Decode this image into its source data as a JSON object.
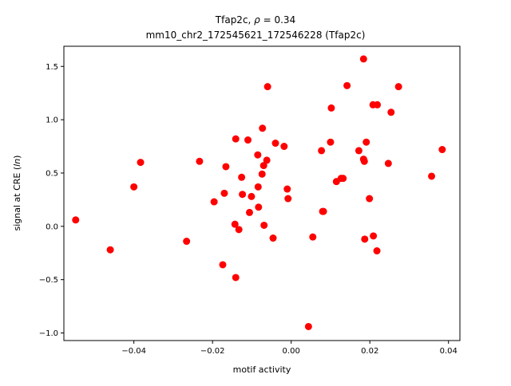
{
  "chart_data": {
    "type": "scatter",
    "title_line1_prefix": "Tfap2c, ",
    "title_rho_symbol": "ρ",
    "title_rho_value": " = 0.34",
    "title_line2": "mm10_chr2_172545621_172546228 (Tfap2c)",
    "xlabel": "motif activity",
    "ylabel_prefix": "signal at CRE (",
    "ylabel_italic": "ln",
    "ylabel_suffix": ")",
    "xlim": [
      -0.0578,
      0.0429
    ],
    "ylim": [
      -1.071,
      1.689
    ],
    "xticks": [
      -0.04,
      -0.02,
      0.0,
      0.02,
      0.04
    ],
    "xtick_labels": [
      "−0.04",
      "−0.02",
      "0.00",
      "0.02",
      "0.04"
    ],
    "yticks": [
      -1.0,
      -0.5,
      0.0,
      0.5,
      1.0,
      1.5
    ],
    "ytick_labels": [
      "−1.0",
      "−0.5",
      "0.0",
      "0.5",
      "1.0",
      "1.5"
    ],
    "grid": false,
    "marker_color": "#ff0000",
    "points": [
      {
        "x": -0.0548,
        "y": 0.06
      },
      {
        "x": -0.046,
        "y": -0.22
      },
      {
        "x": -0.04,
        "y": 0.37
      },
      {
        "x": -0.0383,
        "y": 0.6
      },
      {
        "x": -0.0266,
        "y": -0.14
      },
      {
        "x": -0.0233,
        "y": 0.61
      },
      {
        "x": -0.0196,
        "y": 0.23
      },
      {
        "x": -0.0174,
        "y": -0.36
      },
      {
        "x": -0.017,
        "y": 0.31
      },
      {
        "x": -0.0166,
        "y": 0.56
      },
      {
        "x": -0.0143,
        "y": 0.02
      },
      {
        "x": -0.0141,
        "y": 0.82
      },
      {
        "x": -0.0141,
        "y": -0.48
      },
      {
        "x": -0.0133,
        "y": -0.03
      },
      {
        "x": -0.0126,
        "y": 0.46
      },
      {
        "x": -0.0124,
        "y": 0.3
      },
      {
        "x": -0.011,
        "y": 0.81
      },
      {
        "x": -0.0106,
        "y": 0.13
      },
      {
        "x": -0.0101,
        "y": 0.28
      },
      {
        "x": -0.0085,
        "y": 0.67
      },
      {
        "x": -0.0084,
        "y": 0.37
      },
      {
        "x": -0.0083,
        "y": 0.18
      },
      {
        "x": -0.0074,
        "y": 0.49
      },
      {
        "x": -0.0073,
        "y": 0.92
      },
      {
        "x": -0.007,
        "y": 0.57
      },
      {
        "x": -0.0069,
        "y": 0.01
      },
      {
        "x": -0.0062,
        "y": 0.62
      },
      {
        "x": -0.006,
        "y": 1.31
      },
      {
        "x": -0.0046,
        "y": -0.11
      },
      {
        "x": -0.004,
        "y": 0.78
      },
      {
        "x": -0.0018,
        "y": 0.75
      },
      {
        "x": -0.001,
        "y": 0.35
      },
      {
        "x": -0.0008,
        "y": 0.26
      },
      {
        "x": 0.0044,
        "y": -0.94
      },
      {
        "x": 0.0055,
        "y": -0.1
      },
      {
        "x": 0.0077,
        "y": 0.71
      },
      {
        "x": 0.008,
        "y": 0.14
      },
      {
        "x": 0.0082,
        "y": 0.14
      },
      {
        "x": 0.01,
        "y": 0.79
      },
      {
        "x": 0.0102,
        "y": 1.11
      },
      {
        "x": 0.0115,
        "y": 0.42
      },
      {
        "x": 0.0127,
        "y": 0.45
      },
      {
        "x": 0.0132,
        "y": 0.45
      },
      {
        "x": 0.0142,
        "y": 1.32
      },
      {
        "x": 0.0172,
        "y": 0.71
      },
      {
        "x": 0.0184,
        "y": 1.57
      },
      {
        "x": 0.0184,
        "y": 0.63
      },
      {
        "x": 0.0186,
        "y": 0.61
      },
      {
        "x": 0.0187,
        "y": -0.12
      },
      {
        "x": 0.0191,
        "y": 0.79
      },
      {
        "x": 0.0199,
        "y": 0.26
      },
      {
        "x": 0.0208,
        "y": 1.14
      },
      {
        "x": 0.0209,
        "y": -0.09
      },
      {
        "x": 0.0218,
        "y": -0.23
      },
      {
        "x": 0.0219,
        "y": 1.14
      },
      {
        "x": 0.0247,
        "y": 0.59
      },
      {
        "x": 0.0254,
        "y": 1.07
      },
      {
        "x": 0.0273,
        "y": 1.31
      },
      {
        "x": 0.0357,
        "y": 0.47
      },
      {
        "x": 0.0384,
        "y": 0.72
      }
    ]
  }
}
